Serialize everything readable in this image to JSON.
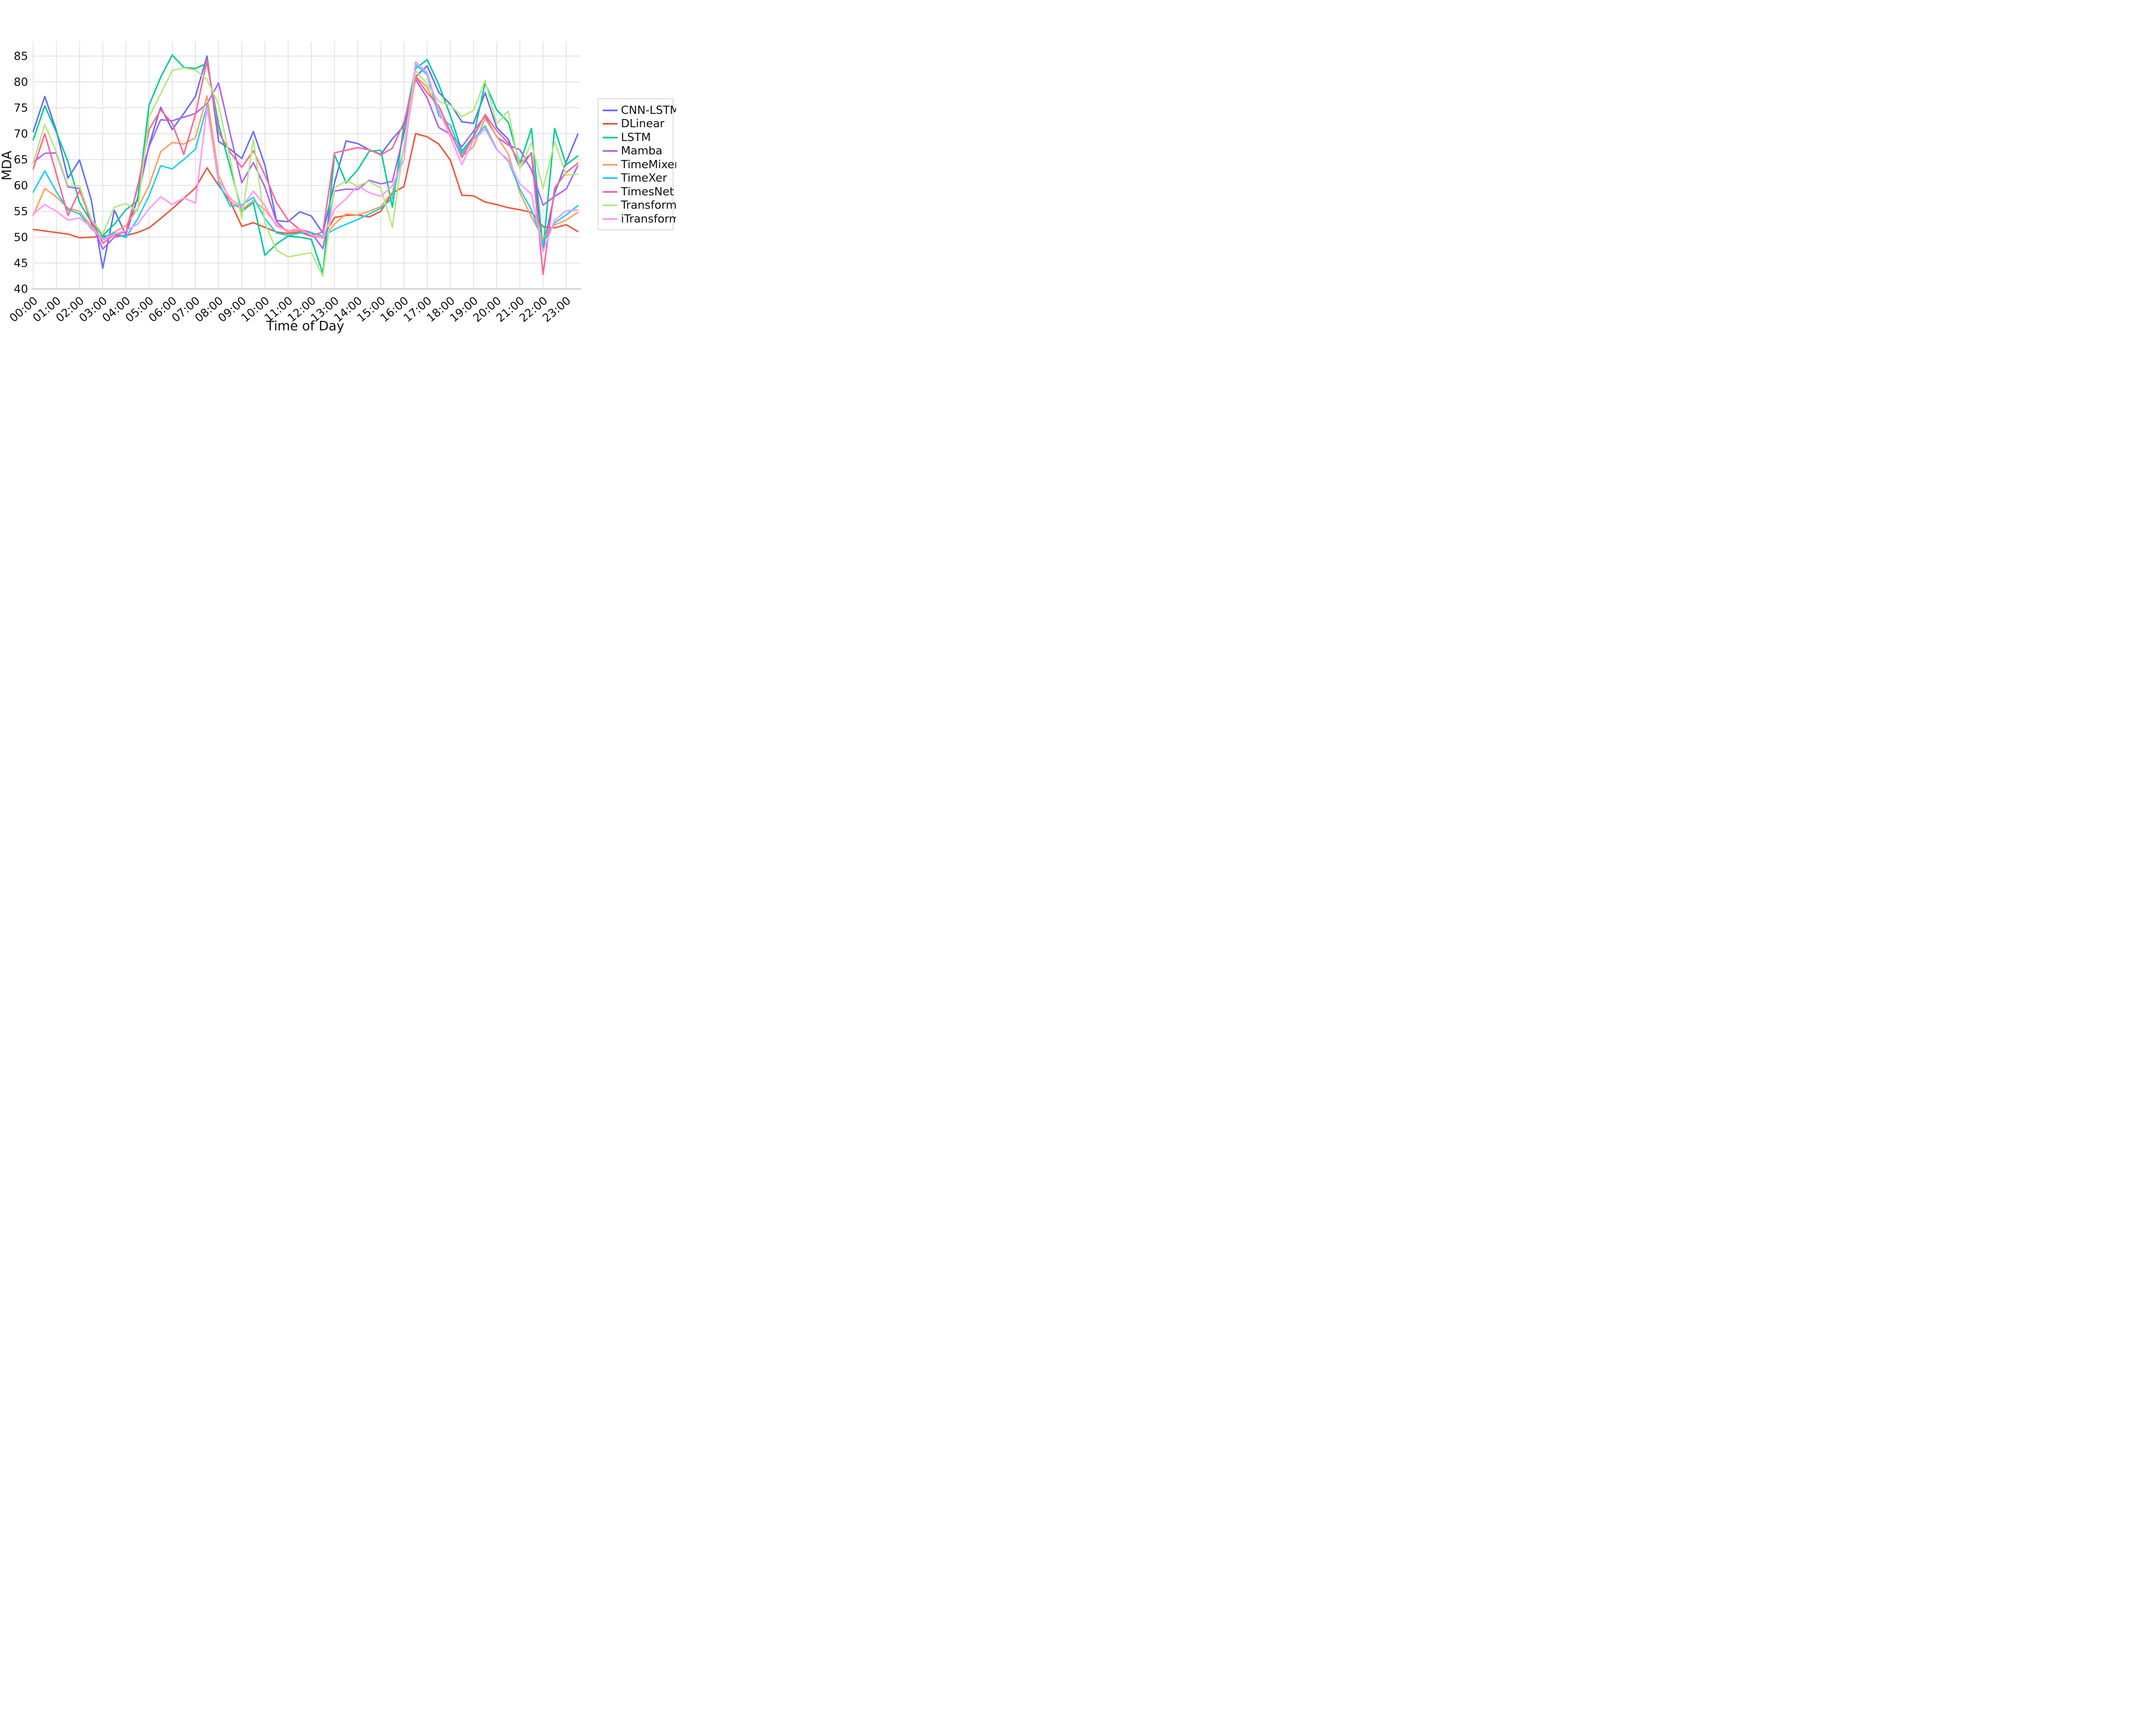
{
  "chart_data": {
    "type": "line",
    "title": "",
    "xlabel": "Time of Day",
    "ylabel": "MDA",
    "ylim": [
      40,
      85
    ],
    "y_ticks": [
      40,
      45,
      50,
      55,
      60,
      65,
      70,
      75,
      80,
      85
    ],
    "x_tick_labels": [
      "00:00",
      "01:00",
      "02:00",
      "03:00",
      "04:00",
      "05:00",
      "06:00",
      "07:00",
      "08:00",
      "09:00",
      "10:00",
      "11:00",
      "12:00",
      "13:00",
      "14:00",
      "15:00",
      "16:00",
      "17:00",
      "18:00",
      "19:00",
      "20:00",
      "21:00",
      "22:00",
      "23:00"
    ],
    "grid": true,
    "legend_position": "right",
    "grid_color": "#e2e2e2",
    "axis_line_color": "#d4d4d4",
    "x": [
      "00:00",
      "00:30",
      "01:00",
      "01:30",
      "02:00",
      "02:30",
      "03:00",
      "03:30",
      "04:00",
      "04:30",
      "05:00",
      "05:30",
      "06:00",
      "06:30",
      "07:00",
      "07:30",
      "08:00",
      "08:30",
      "09:00",
      "09:30",
      "10:00",
      "10:30",
      "11:00",
      "11:30",
      "12:00",
      "12:30",
      "13:00",
      "13:30",
      "14:00",
      "14:30",
      "15:00",
      "15:30",
      "16:00",
      "16:30",
      "17:00",
      "17:30",
      "18:00",
      "18:30",
      "19:00",
      "19:30",
      "20:00",
      "20:30",
      "21:00",
      "21:30",
      "22:00",
      "22:30",
      "23:00",
      "23:30"
    ],
    "series": [
      {
        "name": "CNN-LSTM",
        "color": "#636EFA",
        "values": [
          70.4,
          77.2,
          70.6,
          61.4,
          64.9,
          57.3,
          44,
          55.2,
          50.5,
          57.5,
          67.8,
          75.1,
          70.8,
          73.9,
          77.2,
          85,
          68.5,
          67,
          65.2,
          70.4,
          63.9,
          53.2,
          53,
          54.9,
          54.1,
          50.8,
          60.5,
          68.6,
          68.1,
          66.9,
          66,
          69,
          71.5,
          81,
          83.1,
          78,
          75.7,
          72.3,
          72,
          77.9,
          71.2,
          68.9,
          63.4,
          66.3,
          47.7,
          58.5,
          64.5,
          69.9
        ]
      },
      {
        "name": "DLinear",
        "color": "#EF553B",
        "values": [
          51.5,
          51.2,
          50.9,
          50.6,
          49.9,
          50,
          50.2,
          50.4,
          50.3,
          50.9,
          51.8,
          53.6,
          55.5,
          57.5,
          59.5,
          63.4,
          60,
          56.9,
          52.1,
          52.8,
          51.9,
          51,
          50.7,
          51,
          50.2,
          49.9,
          53.8,
          54.2,
          54.3,
          53.9,
          55,
          58.5,
          59.8,
          70,
          69.4,
          68,
          64.9,
          58.1,
          58,
          56.8,
          56.3,
          55.7,
          55.3,
          54.8,
          52,
          51.8,
          52.4,
          51.1
        ]
      },
      {
        "name": "LSTM",
        "color": "#00CC96",
        "values": [
          68.8,
          75.4,
          70.3,
          64.6,
          56.7,
          53,
          50.3,
          52.5,
          55.3,
          57,
          75.5,
          80.9,
          85.2,
          82.8,
          82.6,
          83.6,
          71.8,
          63.5,
          55,
          56.7,
          46.5,
          48.7,
          50.2,
          50,
          49.6,
          43,
          66,
          60.5,
          63,
          66.6,
          66.8,
          55.8,
          71.8,
          82.6,
          84.3,
          79.5,
          73.5,
          66.6,
          69.5,
          79.8,
          74.6,
          72.2,
          64.2,
          71,
          47.5,
          71,
          64,
          65.7
        ]
      },
      {
        "name": "Mamba",
        "color": "#AB63FA",
        "values": [
          64.5,
          66.2,
          66.3,
          59.7,
          59.4,
          52.8,
          47.7,
          50,
          50.4,
          59.8,
          67.5,
          72.7,
          72.5,
          73.2,
          73.9,
          75.8,
          79.8,
          70,
          60.5,
          64.4,
          59.7,
          53,
          50.9,
          51.5,
          50.9,
          47.8,
          58.9,
          59.3,
          59.2,
          61,
          60.3,
          60.8,
          70,
          80.5,
          76.9,
          71.2,
          69.9,
          67.5,
          70.5,
          73.4,
          69.4,
          67.8,
          66.9,
          63,
          56.2,
          57.9,
          59.3,
          63.8
        ]
      },
      {
        "name": "TimeMixer",
        "color": "#FFA15A",
        "values": [
          54.2,
          59.4,
          57.8,
          55.6,
          55,
          52.2,
          49.7,
          51,
          52.2,
          55.5,
          60,
          66.5,
          68.3,
          68,
          69.2,
          77.3,
          62,
          57,
          55.3,
          57.1,
          55.3,
          52.4,
          51,
          51.3,
          50.4,
          49.8,
          52.5,
          54.5,
          54.3,
          55,
          55.9,
          58.7,
          67,
          81.1,
          79,
          74.3,
          70.2,
          65.6,
          67.5,
          72.9,
          69.5,
          66.1,
          58.6,
          53.9,
          49.8,
          52.4,
          53.3,
          54.8
        ]
      },
      {
        "name": "TimeXer",
        "color": "#19D3F3",
        "values": [
          58.7,
          62.8,
          58.8,
          55.3,
          54.5,
          51.7,
          49.8,
          50.9,
          49.9,
          53.5,
          58,
          63.8,
          63.2,
          65,
          67,
          75.4,
          60.5,
          56,
          56.2,
          57.7,
          53.6,
          50.8,
          50.3,
          50.8,
          50.9,
          50.2,
          51.5,
          52.5,
          53.4,
          54.5,
          55.6,
          57.5,
          67.4,
          83.4,
          81.4,
          73.5,
          71.6,
          66.1,
          69,
          71.5,
          67,
          64.7,
          59.3,
          55.3,
          48.9,
          52.8,
          54.3,
          56.1
        ]
      },
      {
        "name": "TimesNet",
        "color": "#FF6692",
        "values": [
          63.2,
          70,
          62.2,
          54.2,
          59,
          53.4,
          48.8,
          50.5,
          51,
          59.5,
          70.8,
          74.6,
          72,
          66,
          73.7,
          84.2,
          70.3,
          66.4,
          63.5,
          66.7,
          62,
          56.7,
          53.3,
          51.5,
          50.3,
          51,
          66.3,
          66.8,
          67.3,
          66.9,
          65.9,
          67.2,
          72.2,
          81,
          77.9,
          75.4,
          70.4,
          65.4,
          69.4,
          73.7,
          70.6,
          68.2,
          64.4,
          66.1,
          42.8,
          59.5,
          62.5,
          64.3
        ]
      },
      {
        "name": "Transformer",
        "color": "#B6E880",
        "values": [
          64.3,
          71.8,
          66.5,
          60,
          59.9,
          53.5,
          50.6,
          55.8,
          56.5,
          55,
          73.2,
          77.7,
          82.2,
          82.7,
          82.3,
          80.5,
          75.6,
          65,
          53.6,
          68.9,
          52.7,
          47.5,
          46.2,
          46.6,
          47,
          42.5,
          59.5,
          60.9,
          59.9,
          60.8,
          59.5,
          51.9,
          68,
          82.2,
          79.6,
          76.2,
          75.5,
          73.3,
          74.5,
          80.3,
          71.9,
          74.4,
          63.2,
          68.2,
          59.4,
          68.4,
          62,
          62.2
        ]
      },
      {
        "name": "iTransformer",
        "color": "#FF97FF",
        "values": [
          54.5,
          56.3,
          55,
          53.3,
          53.7,
          52,
          49.4,
          50.6,
          51.3,
          52.5,
          55.5,
          57.8,
          56.3,
          57.6,
          56.6,
          75,
          61,
          57.5,
          55.8,
          58.9,
          56.1,
          52.1,
          51.3,
          51.6,
          50.4,
          50,
          55.4,
          57.4,
          59.9,
          58.6,
          57.9,
          59.9,
          65,
          83.9,
          81.8,
          74.6,
          69.4,
          64,
          68.8,
          70.9,
          66.9,
          64.9,
          60.3,
          58.3,
          47.2,
          53.3,
          55.1,
          55.3
        ]
      }
    ]
  }
}
